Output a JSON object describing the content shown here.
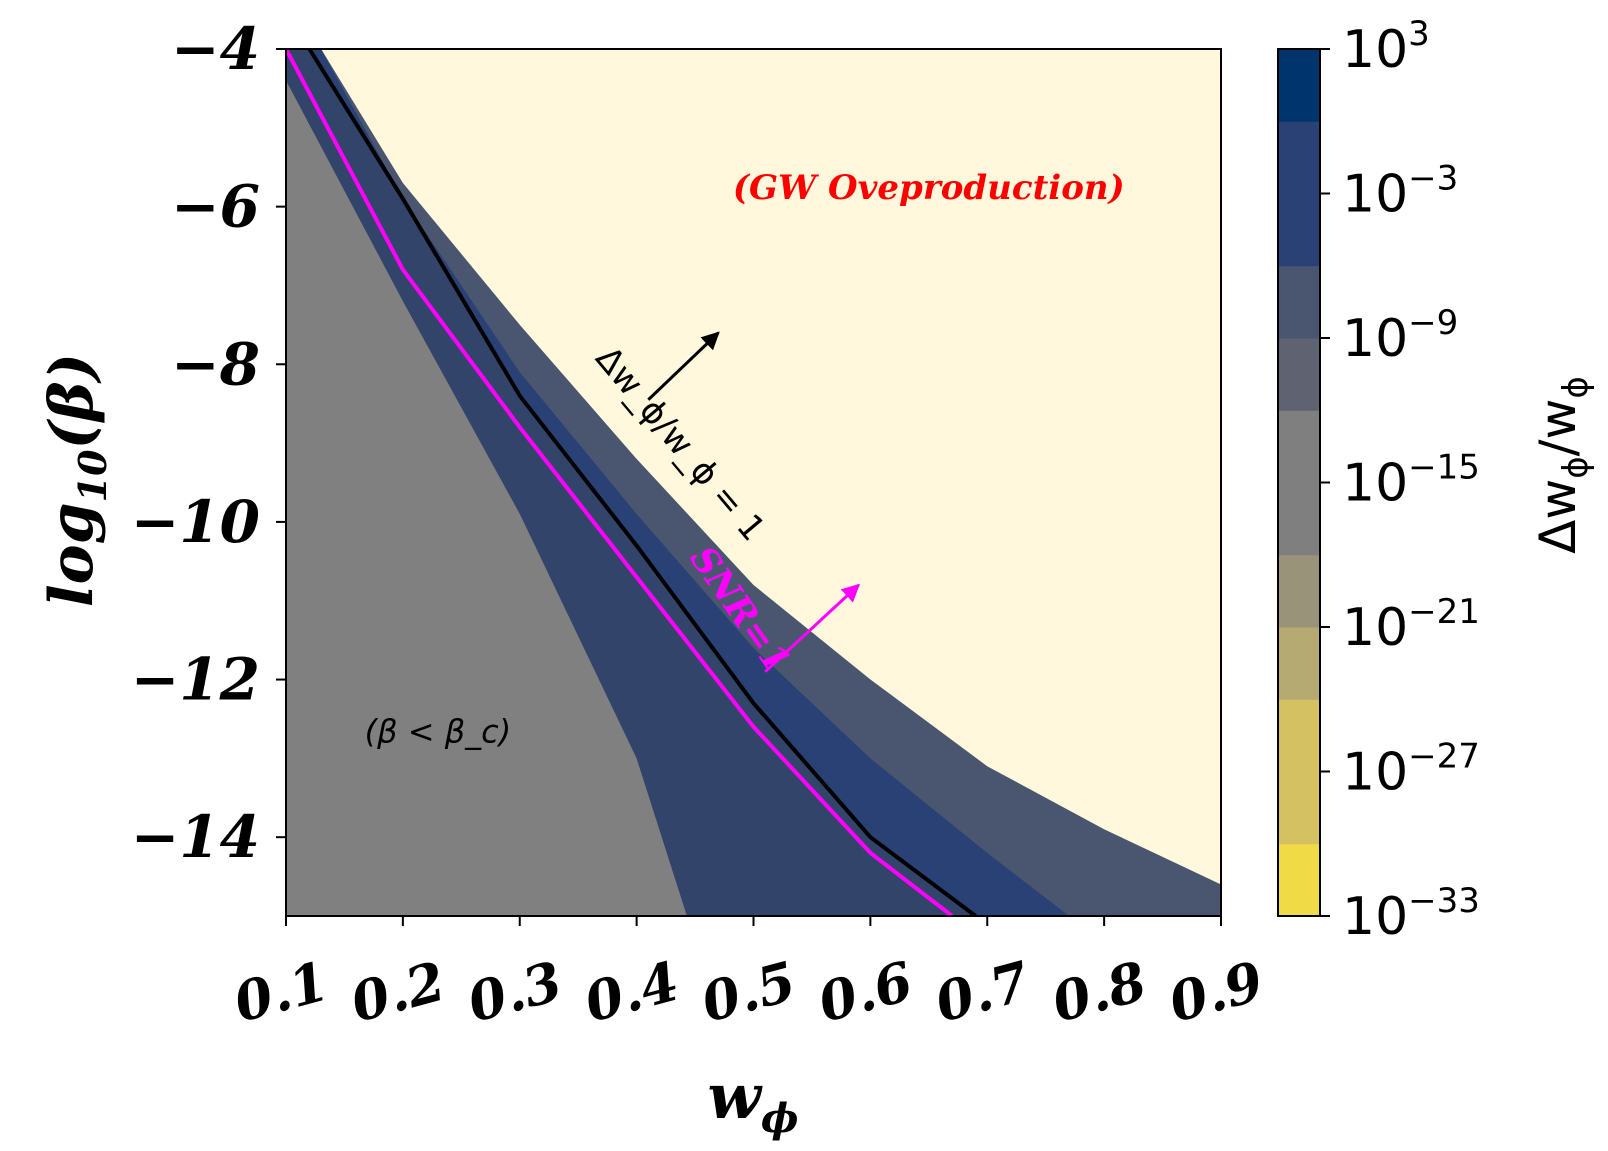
{
  "chart_data": {
    "type": "heatmap",
    "xlabel": "w_ϕ",
    "ylabel": "log₁₀(β)",
    "xlim": [
      0.1,
      0.9
    ],
    "ylim": [
      -15,
      -4
    ],
    "x_ticks": [
      {
        "value": 0.1,
        "label": "0.1"
      },
      {
        "value": 0.2,
        "label": "0.2"
      },
      {
        "value": 0.3,
        "label": "0.3"
      },
      {
        "value": 0.4,
        "label": "0.4"
      },
      {
        "value": 0.5,
        "label": "0.5"
      },
      {
        "value": 0.6,
        "label": "0.6"
      },
      {
        "value": 0.7,
        "label": "0.7"
      },
      {
        "value": 0.8,
        "label": "0.8"
      },
      {
        "value": 0.9,
        "label": "0.9"
      }
    ],
    "y_ticks": [
      {
        "value": -4,
        "label": "−4"
      },
      {
        "value": -6,
        "label": "−6"
      },
      {
        "value": -8,
        "label": "−8"
      },
      {
        "value": -10,
        "label": "−10"
      },
      {
        "value": -12,
        "label": "−12"
      },
      {
        "value": -14,
        "label": "−14"
      }
    ],
    "colorbar": {
      "label": "Δw_ϕ/w_ϕ",
      "levels_exponent": [
        -33,
        -30,
        -27,
        -24,
        -21,
        -18,
        -15,
        -12,
        -9,
        -6,
        -3,
        0,
        3
      ],
      "colors": [
        "#f0db46",
        "#d4c262",
        "#b5aa72",
        "#999479",
        "#7f7f7f",
        "#5f6371",
        "#4a5670",
        "#294174",
        "#00346c"
      ],
      "tick_exponents": [
        3,
        -3,
        -9,
        -15,
        -21,
        -27,
        -33
      ],
      "tick_base": "10"
    },
    "regions": [
      {
        "label": "(GW Oveproduction)",
        "color": "#fff8dc"
      },
      {
        "label": "(β < β_c)",
        "color": "#808080"
      }
    ],
    "colors": {
      "gw_region": "#fff8dc",
      "beta_c_region": "#808080",
      "main_band": "#33446b",
      "band_2": "#294174",
      "band_3": "#4a5670",
      "band_4": "#5f6371",
      "deep": "#00346c",
      "snr_line": "#ff00ff",
      "dw_line": "#000000",
      "annotation_red": "#ff0000"
    },
    "boundaries": {
      "beta_c": [
        [
          0.1,
          -4.4
        ],
        [
          0.2,
          -7.2
        ],
        [
          0.3,
          -9.9
        ],
        [
          0.4,
          -13.0
        ],
        [
          0.443,
          -15.0
        ]
      ],
      "snr_line": [
        [
          0.1,
          -4.0
        ],
        [
          0.2,
          -6.8
        ],
        [
          0.3,
          -8.8
        ],
        [
          0.4,
          -10.7
        ],
        [
          0.5,
          -12.6
        ],
        [
          0.6,
          -14.2
        ],
        [
          0.67,
          -15.0
        ]
      ],
      "dw_line": [
        [
          0.12,
          -4.0
        ],
        [
          0.2,
          -5.9
        ],
        [
          0.3,
          -8.4
        ],
        [
          0.4,
          -10.3
        ],
        [
          0.5,
          -12.3
        ],
        [
          0.6,
          -14.0
        ],
        [
          0.69,
          -15.0
        ]
      ],
      "band_2_edge": [
        [
          0.13,
          -4.0
        ],
        [
          0.2,
          -5.9
        ],
        [
          0.3,
          -8.1
        ],
        [
          0.4,
          -9.9
        ],
        [
          0.5,
          -11.6
        ],
        [
          0.6,
          -13.0
        ],
        [
          0.7,
          -14.2
        ],
        [
          0.77,
          -15.0
        ]
      ],
      "band_3_edge": [
        [
          0.13,
          -4.0
        ],
        [
          0.2,
          -5.7
        ],
        [
          0.3,
          -7.5
        ],
        [
          0.4,
          -9.2
        ],
        [
          0.5,
          -10.8
        ],
        [
          0.6,
          -12.0
        ],
        [
          0.7,
          -13.1
        ],
        [
          0.8,
          -13.9
        ],
        [
          0.9,
          -14.6
        ]
      ]
    },
    "annotations": [
      {
        "text": "(GW Oveproduction)",
        "x": 0.65,
        "y": -5.9,
        "color": "#ff0000"
      },
      {
        "text": "(β < β_c)",
        "x": 0.23,
        "y": -12.8,
        "color": "#000000"
      },
      {
        "text": "SNR=1",
        "x": 0.48,
        "y": -11.2,
        "color": "#ff00ff",
        "arrow_to": [
          0.59,
          -10.8
        ],
        "arrow_from": [
          0.51,
          -11.9
        ]
      },
      {
        "text": "Δw_ϕ/w_ϕ = 1",
        "x": 0.43,
        "y": -9.1,
        "color": "#000000",
        "arrow_to": [
          0.47,
          -7.6
        ],
        "arrow_from": [
          0.41,
          -8.45
        ]
      }
    ]
  }
}
